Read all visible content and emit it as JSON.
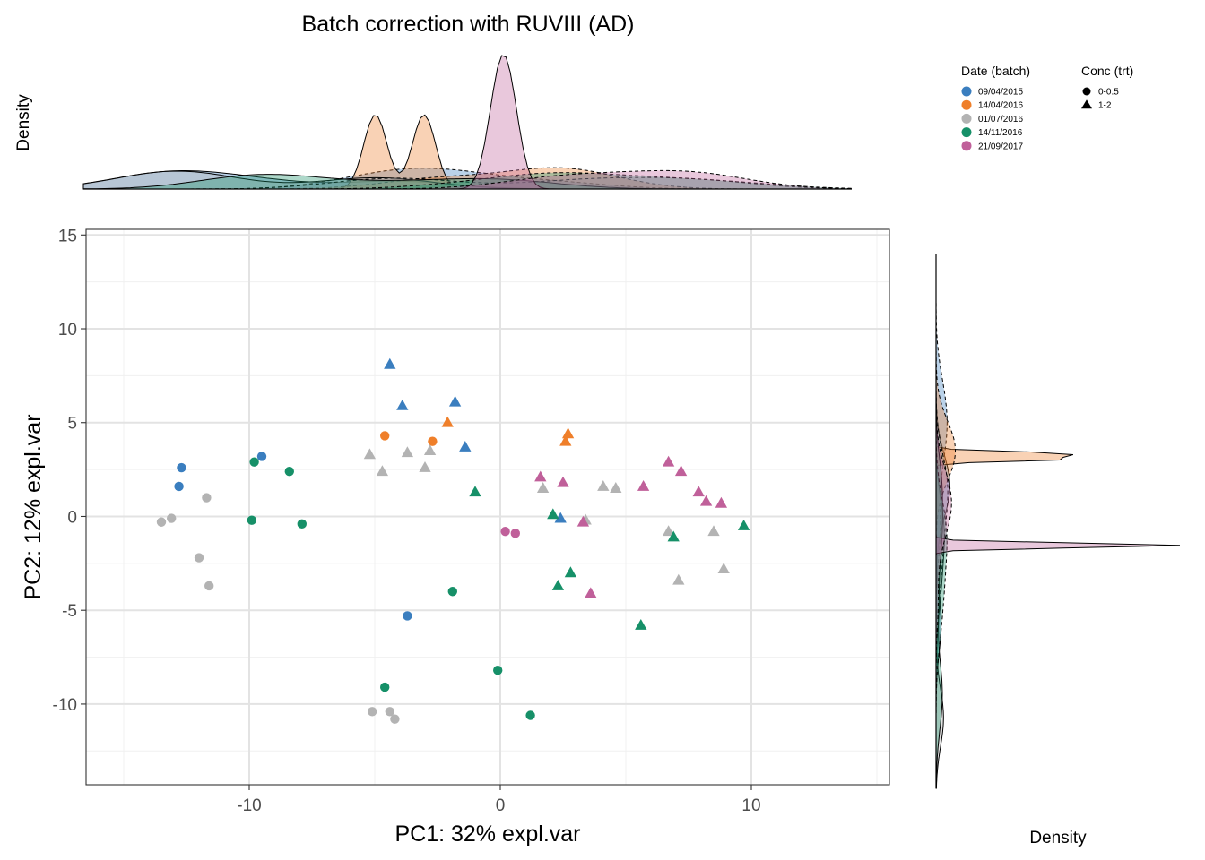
{
  "chart_data": {
    "type": "scatter",
    "title": "Batch correction with RUVIII (AD)",
    "xlabel": "PC1: 32% expl.var",
    "ylabel": "PC2: 12% expl.var",
    "top_density_label": "Density",
    "right_density_label": "Density",
    "xlim": [
      -16.5,
      15.5
    ],
    "ylim": [
      -14.3,
      15.3
    ],
    "x_ticks": [
      -10,
      0,
      10
    ],
    "x_tick_labels": [
      "-10",
      "0",
      "10"
    ],
    "y_ticks": [
      -10,
      -5,
      0,
      5,
      10,
      15
    ],
    "y_tick_labels": [
      "-10",
      "-5",
      "0",
      "5",
      "10",
      "15"
    ],
    "grid": true,
    "color_legend": {
      "title": "Date (batch)",
      "position": "top-right",
      "items": [
        {
          "label": "09/04/2015",
          "color": "#3a7ebf"
        },
        {
          "label": "14/04/2016",
          "color": "#ef7f2a"
        },
        {
          "label": "01/07/2016",
          "color": "#b3b3b3"
        },
        {
          "label": "14/11/2016",
          "color": "#169068"
        },
        {
          "label": "21/09/2017",
          "color": "#c0609a"
        }
      ]
    },
    "shape_legend": {
      "title": "Conc (trt)",
      "position": "top-right",
      "items": [
        {
          "label": "0-0.5",
          "shape": "circle"
        },
        {
          "label": "1-2",
          "shape": "triangle"
        }
      ]
    },
    "points": [
      {
        "x": -12.7,
        "y": 2.6,
        "batch": 0,
        "trt": 0
      },
      {
        "x": -12.8,
        "y": 1.6,
        "batch": 0,
        "trt": 0
      },
      {
        "x": -9.5,
        "y": 3.2,
        "batch": 0,
        "trt": 0
      },
      {
        "x": -3.7,
        "y": -5.3,
        "batch": 0,
        "trt": 0
      },
      {
        "x": -4.4,
        "y": 8.1,
        "batch": 0,
        "trt": 1
      },
      {
        "x": -3.9,
        "y": 5.9,
        "batch": 0,
        "trt": 1
      },
      {
        "x": -1.8,
        "y": 6.1,
        "batch": 0,
        "trt": 1
      },
      {
        "x": -1.4,
        "y": 3.7,
        "batch": 0,
        "trt": 1
      },
      {
        "x": 2.4,
        "y": -0.1,
        "batch": 0,
        "trt": 1
      },
      {
        "x": -4.6,
        "y": 4.3,
        "batch": 1,
        "trt": 0
      },
      {
        "x": -2.7,
        "y": 4.0,
        "batch": 1,
        "trt": 0
      },
      {
        "x": -2.1,
        "y": 5.0,
        "batch": 1,
        "trt": 1
      },
      {
        "x": 2.7,
        "y": 4.4,
        "batch": 1,
        "trt": 1
      },
      {
        "x": 2.6,
        "y": 4.0,
        "batch": 1,
        "trt": 1
      },
      {
        "x": -11.7,
        "y": 1.0,
        "batch": 2,
        "trt": 0
      },
      {
        "x": -13.1,
        "y": -0.1,
        "batch": 2,
        "trt": 0
      },
      {
        "x": -13.5,
        "y": -0.3,
        "batch": 2,
        "trt": 0
      },
      {
        "x": -12.0,
        "y": -2.2,
        "batch": 2,
        "trt": 0
      },
      {
        "x": -11.6,
        "y": -3.7,
        "batch": 2,
        "trt": 0
      },
      {
        "x": -5.1,
        "y": -10.4,
        "batch": 2,
        "trt": 0
      },
      {
        "x": -4.4,
        "y": -10.4,
        "batch": 2,
        "trt": 0
      },
      {
        "x": -4.2,
        "y": -10.8,
        "batch": 2,
        "trt": 0
      },
      {
        "x": -5.2,
        "y": 3.3,
        "batch": 2,
        "trt": 1
      },
      {
        "x": -4.7,
        "y": 2.4,
        "batch": 2,
        "trt": 1
      },
      {
        "x": -3.7,
        "y": 3.4,
        "batch": 2,
        "trt": 1
      },
      {
        "x": -3.0,
        "y": 2.6,
        "batch": 2,
        "trt": 1
      },
      {
        "x": -2.8,
        "y": 3.5,
        "batch": 2,
        "trt": 1
      },
      {
        "x": 1.7,
        "y": 1.5,
        "batch": 2,
        "trt": 1
      },
      {
        "x": 3.4,
        "y": -0.2,
        "batch": 2,
        "trt": 1
      },
      {
        "x": 4.1,
        "y": 1.6,
        "batch": 2,
        "trt": 1
      },
      {
        "x": 4.6,
        "y": 1.5,
        "batch": 2,
        "trt": 1
      },
      {
        "x": 6.7,
        "y": -0.8,
        "batch": 2,
        "trt": 1
      },
      {
        "x": 7.1,
        "y": -3.4,
        "batch": 2,
        "trt": 1
      },
      {
        "x": 8.5,
        "y": -0.8,
        "batch": 2,
        "trt": 1
      },
      {
        "x": 8.9,
        "y": -2.8,
        "batch": 2,
        "trt": 1
      },
      {
        "x": -9.8,
        "y": 2.9,
        "batch": 3,
        "trt": 0
      },
      {
        "x": -8.4,
        "y": 2.4,
        "batch": 3,
        "trt": 0
      },
      {
        "x": -9.9,
        "y": -0.2,
        "batch": 3,
        "trt": 0
      },
      {
        "x": -7.9,
        "y": -0.4,
        "batch": 3,
        "trt": 0
      },
      {
        "x": -1.9,
        "y": -4.0,
        "batch": 3,
        "trt": 0
      },
      {
        "x": -4.6,
        "y": -9.1,
        "batch": 3,
        "trt": 0
      },
      {
        "x": -0.1,
        "y": -8.2,
        "batch": 3,
        "trt": 0
      },
      {
        "x": 1.2,
        "y": -10.6,
        "batch": 3,
        "trt": 0
      },
      {
        "x": -1.0,
        "y": 1.3,
        "batch": 3,
        "trt": 1
      },
      {
        "x": 2.1,
        "y": 0.1,
        "batch": 3,
        "trt": 1
      },
      {
        "x": 2.8,
        "y": -3.0,
        "batch": 3,
        "trt": 1
      },
      {
        "x": 2.3,
        "y": -3.7,
        "batch": 3,
        "trt": 1
      },
      {
        "x": 5.6,
        "y": -5.8,
        "batch": 3,
        "trt": 1
      },
      {
        "x": 6.9,
        "y": -1.1,
        "batch": 3,
        "trt": 1
      },
      {
        "x": 9.7,
        "y": -0.5,
        "batch": 3,
        "trt": 1
      },
      {
        "x": 0.2,
        "y": -0.8,
        "batch": 4,
        "trt": 0
      },
      {
        "x": 0.6,
        "y": -0.9,
        "batch": 4,
        "trt": 0
      },
      {
        "x": 1.6,
        "y": 2.1,
        "batch": 4,
        "trt": 1
      },
      {
        "x": 2.5,
        "y": 1.8,
        "batch": 4,
        "trt": 1
      },
      {
        "x": 3.3,
        "y": -0.3,
        "batch": 4,
        "trt": 1
      },
      {
        "x": 3.6,
        "y": -4.1,
        "batch": 4,
        "trt": 1
      },
      {
        "x": 5.7,
        "y": 1.6,
        "batch": 4,
        "trt": 1
      },
      {
        "x": 6.7,
        "y": 2.9,
        "batch": 4,
        "trt": 1
      },
      {
        "x": 7.2,
        "y": 2.4,
        "batch": 4,
        "trt": 1
      },
      {
        "x": 7.9,
        "y": 1.3,
        "batch": 4,
        "trt": 1
      },
      {
        "x": 8.2,
        "y": 0.8,
        "batch": 4,
        "trt": 1
      },
      {
        "x": 8.8,
        "y": 0.7,
        "batch": 4,
        "trt": 1
      }
    ]
  }
}
